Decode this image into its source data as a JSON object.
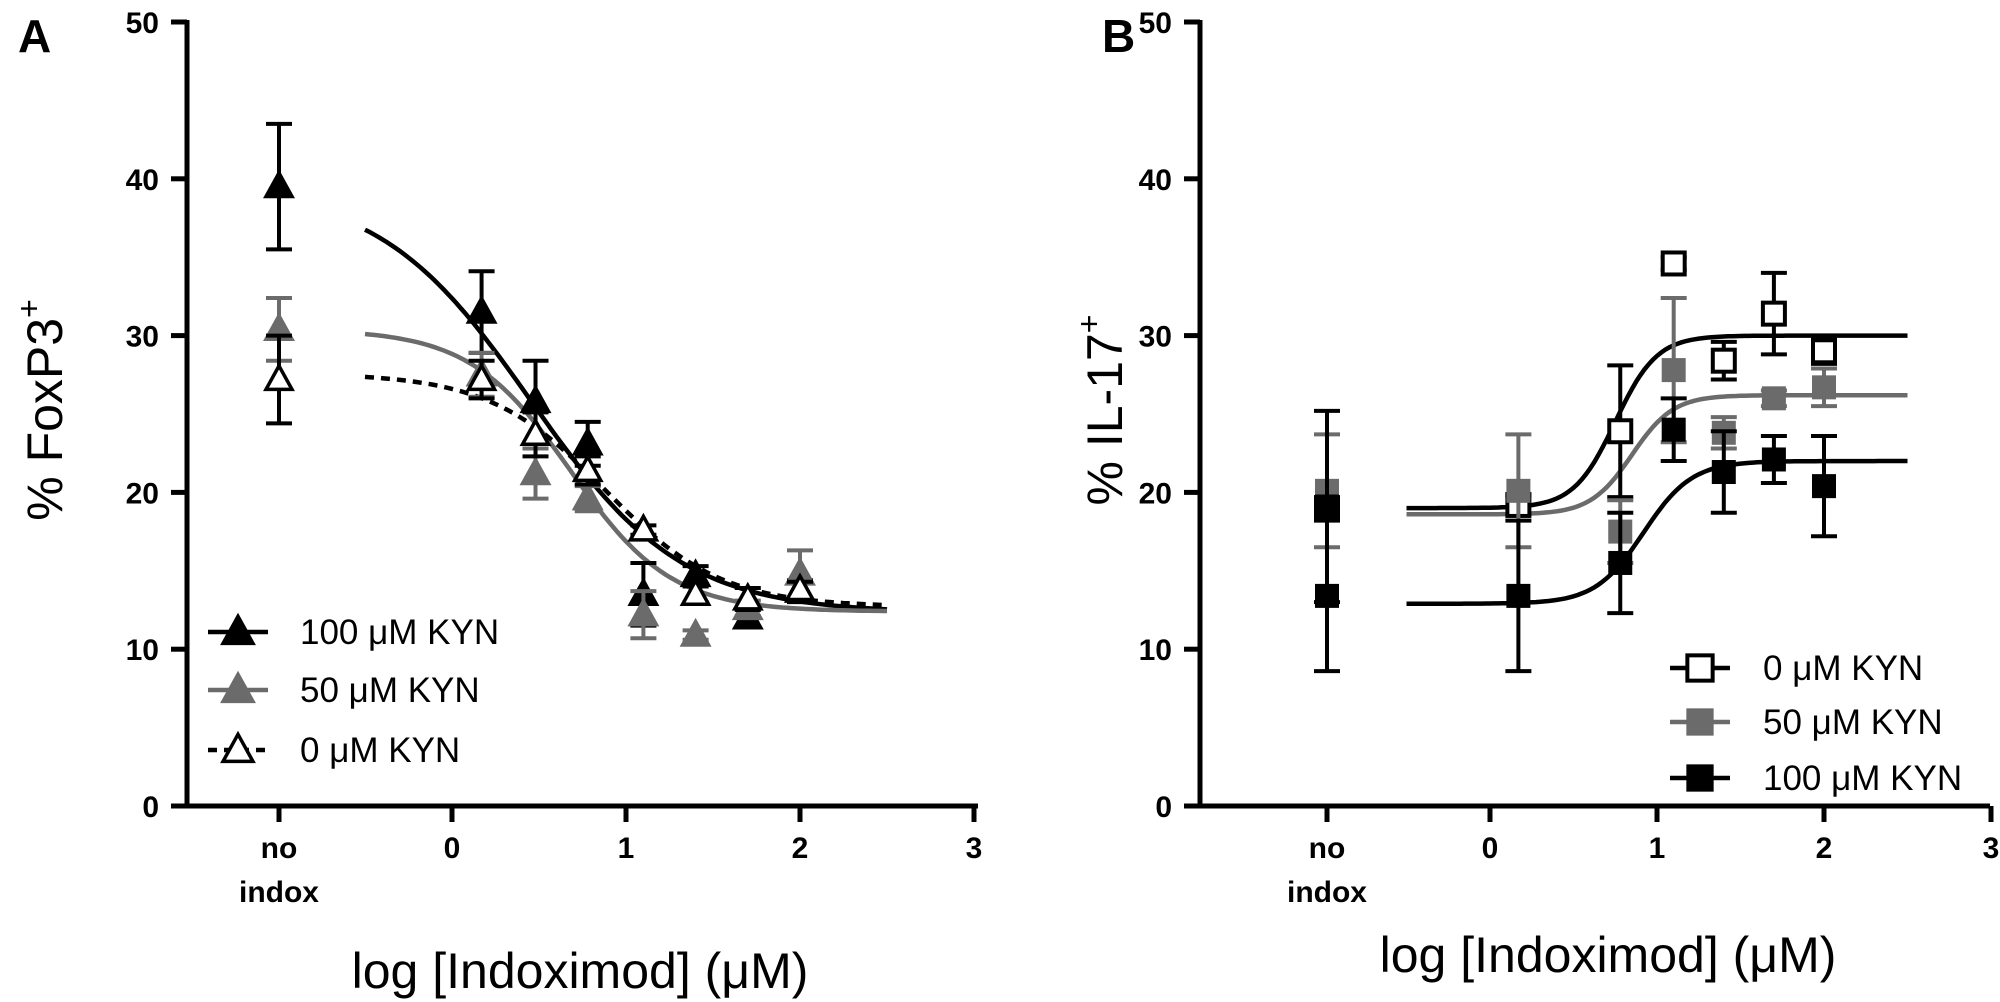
{
  "chart_data": [
    {
      "panel": "A",
      "type": "scatter",
      "xlabel": "log [Indoximod] (μM)",
      "ylabel_main": "% FoxP3",
      "ylabel_sup": "+",
      "ylim": [
        0,
        50
      ],
      "yticks": [
        0,
        10,
        20,
        30,
        40,
        50
      ],
      "xlim": [
        -1,
        3
      ],
      "xticks": [
        0,
        1,
        2,
        3
      ],
      "noindox_label": [
        "no",
        "indox"
      ],
      "legend_position": "bottom-left",
      "series": [
        {
          "name": "100 μM KYN",
          "marker": "triangle",
          "fill": "#000000",
          "stroke": "#000000",
          "dash": "",
          "noindox": {
            "y": 39.5,
            "err": 4.0
          },
          "x": [
            0.17,
            0.48,
            0.78,
            1.1,
            1.4,
            1.7,
            2.0
          ],
          "y": [
            31.5,
            25.8,
            23.1,
            13.5,
            14.7,
            12.0,
            13.7
          ],
          "err": [
            2.6,
            2.6,
            1.4,
            2.0,
            0.6,
            0.6,
            0.7
          ],
          "fit": {
            "top": 39.5,
            "bottom": 12.3,
            "ec50": 0.45,
            "hill": 1.0
          }
        },
        {
          "name": "50 μM KYN",
          "marker": "triangle",
          "fill": "#6b6b6b",
          "stroke": "#6b6b6b",
          "dash": "",
          "noindox": {
            "y": 30.4,
            "err": 2.0
          },
          "x": [
            0.17,
            0.48,
            0.78,
            1.1,
            1.4,
            1.7,
            2.0
          ],
          "y": [
            27.5,
            21.2,
            19.6,
            12.2,
            10.9,
            12.6,
            14.8
          ],
          "err": [
            1.4,
            1.6,
            0.8,
            1.5,
            0.3,
            0.5,
            1.5
          ],
          "fit": {
            "top": 30.4,
            "bottom": 12.4,
            "ec50": 0.68,
            "hill": 1.5
          }
        },
        {
          "name": "0  μM KYN",
          "marker": "triangle",
          "fill": "#ffffff",
          "stroke": "#000000",
          "dash": "9,7",
          "noindox": {
            "y": 27.2,
            "err": 2.8
          },
          "x": [
            0.17,
            0.48,
            0.78,
            1.1,
            1.4,
            1.7,
            2.0
          ],
          "y": [
            27.2,
            23.7,
            21.4,
            17.6,
            13.5,
            13.2,
            13.8
          ],
          "err": [
            1.2,
            1.4,
            0.9,
            0.3,
            0.5,
            0.7,
            0.5
          ],
          "fit": {
            "top": 27.6,
            "bottom": 12.7,
            "ec50": 0.88,
            "hill": 1.3
          }
        }
      ]
    },
    {
      "panel": "B",
      "type": "scatter",
      "xlabel": "log [Indoximod] (μM)",
      "ylabel_main": "% IL-17",
      "ylabel_sup": "+",
      "ylim": [
        0,
        50
      ],
      "yticks": [
        0,
        10,
        20,
        30,
        40,
        50
      ],
      "xlim": [
        -1,
        3
      ],
      "xticks": [
        0,
        1,
        2,
        3
      ],
      "noindox_label": [
        "no",
        "indox"
      ],
      "legend_position": "bottom-right",
      "series": [
        {
          "name": "0 μM KYN",
          "marker": "square",
          "fill": "#ffffff",
          "stroke": "#000000",
          "dash": "",
          "noindox": {
            "y": 19.0,
            "err": 0.4
          },
          "x": [
            0.17,
            0.78,
            1.1,
            1.4,
            1.7,
            2.0
          ],
          "y": [
            19.2,
            23.9,
            34.6,
            28.4,
            31.4,
            29.0
          ],
          "err": [
            0.6,
            4.2,
            0.4,
            1.2,
            2.6,
            0.8
          ],
          "fit": {
            "bottom": 19.0,
            "top": 30.0,
            "ec50": 0.75,
            "hill": 3.5
          }
        },
        {
          "name": "50 μM KYN",
          "marker": "square",
          "fill": "#6b6b6b",
          "stroke": "#6b6b6b",
          "dash": "",
          "noindox": {
            "y": 20.1,
            "err": 3.6
          },
          "x": [
            0.17,
            0.78,
            1.1,
            1.4,
            1.7,
            2.0
          ],
          "y": [
            20.1,
            17.5,
            27.8,
            23.8,
            26.0,
            26.7
          ],
          "err": [
            3.6,
            2.0,
            4.6,
            1.0,
            0.5,
            1.2
          ],
          "fit": {
            "bottom": 18.6,
            "top": 26.2,
            "ec50": 0.85,
            "hill": 3.5
          }
        },
        {
          "name": "100 μM KYN",
          "marker": "square",
          "fill": "#000000",
          "stroke": "#000000",
          "dash": "",
          "noindox": {
            "y": 13.4,
            "err": 4.8,
            "y2": 19.1,
            "err2": 6.1
          },
          "x": [
            0.17,
            0.78,
            1.1,
            1.4,
            1.7,
            2.0
          ],
          "y": [
            13.4,
            15.5,
            24.0,
            21.3,
            22.1,
            20.4
          ],
          "err": [
            4.8,
            3.2,
            2.0,
            2.6,
            1.5,
            3.2
          ],
          "fit": {
            "bottom": 12.9,
            "top": 22.0,
            "ec50": 0.92,
            "hill": 3.0
          }
        }
      ]
    }
  ]
}
